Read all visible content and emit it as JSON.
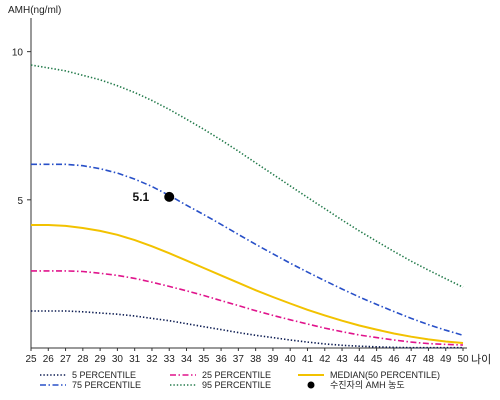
{
  "chart_data": {
    "type": "line",
    "ylabel": "AMH(ng/ml)",
    "xlabel": "나이",
    "xlim": [
      25,
      50
    ],
    "ylim": [
      0,
      11
    ],
    "yticks": [
      5,
      10
    ],
    "x": [
      25,
      26,
      27,
      28,
      29,
      30,
      31,
      32,
      33,
      34,
      35,
      36,
      37,
      38,
      39,
      40,
      41,
      42,
      43,
      44,
      45,
      46,
      47,
      48,
      49,
      50
    ],
    "series": [
      {
        "name": "5 PERCENTILE",
        "color": "#0a1a50",
        "dash": "dotted",
        "values": [
          1.25,
          1.25,
          1.25,
          1.22,
          1.18,
          1.14,
          1.08,
          1.0,
          0.92,
          0.82,
          0.72,
          0.62,
          0.52,
          0.43,
          0.35,
          0.27,
          0.2,
          0.14,
          0.09,
          0.06,
          0.04,
          0.02,
          0.01,
          0.01,
          0.01,
          0.01
        ]
      },
      {
        "name": "25 PERCENTILE",
        "color": "#e0148c",
        "dash": "dashdot",
        "values": [
          2.6,
          2.6,
          2.6,
          2.58,
          2.52,
          2.45,
          2.35,
          2.22,
          2.08,
          1.93,
          1.77,
          1.6,
          1.43,
          1.26,
          1.1,
          0.95,
          0.81,
          0.67,
          0.55,
          0.44,
          0.35,
          0.27,
          0.2,
          0.15,
          0.12,
          0.1
        ]
      },
      {
        "name": "MEDIAN(50 PERCENTILE)",
        "color": "#f2c200",
        "dash": "solid",
        "values": [
          4.15,
          4.15,
          4.12,
          4.05,
          3.95,
          3.82,
          3.64,
          3.43,
          3.2,
          2.95,
          2.7,
          2.45,
          2.2,
          1.95,
          1.72,
          1.5,
          1.29,
          1.1,
          0.92,
          0.76,
          0.62,
          0.49,
          0.38,
          0.29,
          0.22,
          0.17
        ]
      },
      {
        "name": "75 PERCENTILE",
        "color": "#2850c8",
        "dash": "dashdot",
        "values": [
          6.2,
          6.2,
          6.2,
          6.15,
          6.05,
          5.9,
          5.7,
          5.45,
          5.15,
          4.82,
          4.5,
          4.17,
          3.83,
          3.5,
          3.18,
          2.86,
          2.56,
          2.27,
          1.99,
          1.72,
          1.47,
          1.23,
          1.0,
          0.79,
          0.6,
          0.43
        ]
      },
      {
        "name": "95 PERCENTILE",
        "color": "#227a4a",
        "dash": "dotted",
        "values": [
          9.55,
          9.45,
          9.35,
          9.2,
          9.05,
          8.85,
          8.62,
          8.35,
          8.05,
          7.72,
          7.38,
          7.02,
          6.64,
          6.25,
          5.86,
          5.47,
          5.08,
          4.7,
          4.32,
          3.95,
          3.6,
          3.26,
          2.93,
          2.63,
          2.34,
          2.05
        ]
      }
    ],
    "points": [
      {
        "name": "수진자의 AMH 농도",
        "x": 33,
        "y": 5.1,
        "label": "5.1",
        "color": "#000000"
      }
    ],
    "legend": [
      {
        "label": "5 PERCENTILE",
        "series": 0
      },
      {
        "label": "25 PERCENTILE",
        "series": 1
      },
      {
        "label": "MEDIAN(50 PERCENTILE)",
        "series": 2
      },
      {
        "label": "75 PERCENTILE",
        "series": 3
      },
      {
        "label": "95 PERCENTILE",
        "series": 4
      },
      {
        "label": "수진자의 AMH 농도",
        "point": 0
      }
    ],
    "legend_placement": "bottom",
    "grid": false
  }
}
